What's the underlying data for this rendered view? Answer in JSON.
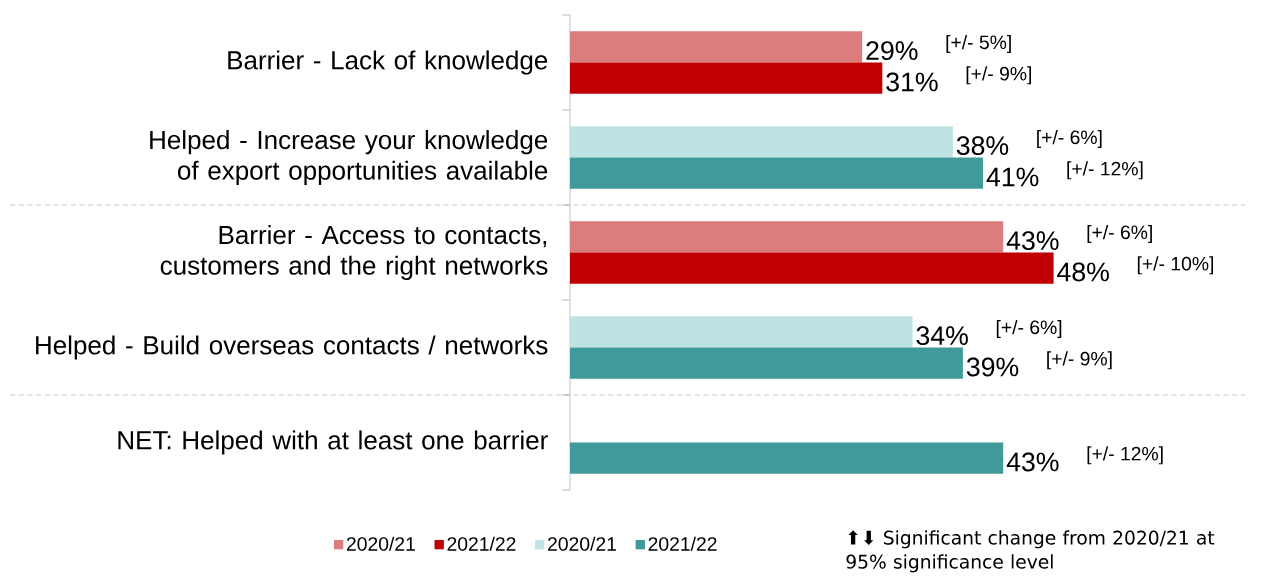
{
  "chart_data": {
    "type": "bar",
    "orientation": "horizontal",
    "categories": [
      "Barrier - Lack of knowledge",
      "Helped - Increase your knowledge of export opportunities available",
      "Barrier - Access to contacts, customers and the right networks",
      "Helped - Build overseas contacts / networks",
      "NET: Helped with at least one barrier"
    ],
    "series": [
      {
        "name": "2020/21",
        "color": "#dc7d7d",
        "values": [
          29,
          null,
          43,
          null,
          null
        ],
        "value_labels": [
          "29%",
          null,
          "43%",
          null,
          null
        ]
      },
      {
        "name": "2021/22",
        "color": "#c00000",
        "values": [
          31,
          null,
          48,
          null,
          null
        ],
        "value_labels": [
          "31%",
          null,
          "48%",
          null,
          null
        ]
      },
      {
        "name": "2020/21",
        "color": "#bfe3e3",
        "values": [
          null,
          38,
          null,
          34,
          null
        ],
        "value_labels": [
          null,
          "38%",
          null,
          "34%",
          null
        ]
      },
      {
        "name": "2021/22",
        "color": "#419a9a",
        "values": [
          null,
          41,
          null,
          39,
          43
        ],
        "value_labels": [
          null,
          "41%",
          null,
          "39%",
          "43%"
        ]
      }
    ],
    "xlim": [
      0,
      67
    ],
    "legend": "bottom",
    "tick_labels": "y",
    "annotations": [
      "[+/- 5%]",
      "[+/- 9%]",
      "[+/- 6%]",
      "[+/- 12%]",
      "[+/- 6%]",
      "[+/- 10%]",
      "[+/- 6%]",
      "[+/- 9%]",
      "[+/- 12%]",
      "⬆⬇ Significant change from 2020/21 at 95% significance level"
    ]
  }
}
